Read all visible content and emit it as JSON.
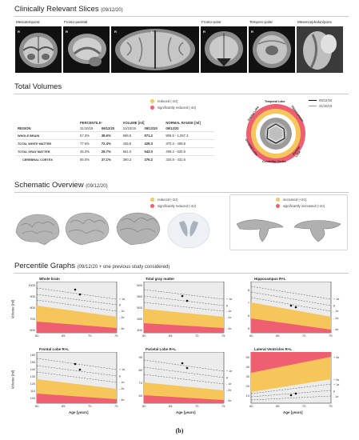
{
  "slices": {
    "title": "Clinically Relevant Slices",
    "date": "(09/12/20)",
    "labels": [
      "Mesiotemporal",
      "Fronto-parietal",
      "Fronto-polar",
      "Temporo-polar",
      "Mesencephalon/pons"
    ],
    "markers": [
      "R",
      "R",
      "R",
      "L",
      "R",
      "R"
    ]
  },
  "volumes": {
    "title": "Total Volumes",
    "legend": [
      "reduced (-2σ)",
      "significantly reduced (-4σ)"
    ],
    "headers": {
      "region": "REGION",
      "percentile": "PERCENTILE¹",
      "volume": "VOLUME [ml]",
      "normal": "NORMAL RANGE [ml]"
    },
    "dates": [
      "31/10/19",
      "09/12/20",
      "31/10/19",
      "09/12/20",
      "09/12/20"
    ],
    "rows": [
      {
        "region": "WHOLE BRAIN",
        "p1": "57.3%",
        "p2": "38.6%",
        "v1": "996.6",
        "v2": "971.2",
        "nr": "906.5 - 1,057.3"
      },
      {
        "region": "TOTAL WHITE MATTER",
        "p1": "77.6%",
        "p2": "72.4%",
        "v1": "435.8",
        "v2": "428.3",
        "nr": "370.4 - 459.8"
      },
      {
        "region": "TOTAL GRAY MATTER",
        "p1": "45.3%",
        "p2": "28.7%",
        "v1": "561.0",
        "v2": "543.0",
        "nr": "499.4 - 620.6"
      },
      {
        "region": "CEREBRAL CORTEX",
        "p1": "56.0%",
        "p2": "37.1%",
        "v1": "390.3",
        "v2": "376.2",
        "nr": "334.8 - 431.6"
      }
    ],
    "radar_legend": [
      "09/12/20",
      "31/10/19"
    ],
    "radar_labels": [
      "Temporal Lobe",
      "Frontal Lobe",
      "Hippocampus",
      "Parietal Lobe",
      "Cerebellar Cortex",
      "Occipital Lobe"
    ]
  },
  "schematic": {
    "title": "Schematic Overview",
    "date": "(09/12/20)",
    "legend_left": [
      "reduced (-2σ)",
      "significantly reduced (-4σ)"
    ],
    "legend_right": [
      "increased (+2σ)",
      "significantly increased (+4σ)"
    ]
  },
  "percentile": {
    "title": "Percentile Graphs",
    "subtitle": "(09/12/20 + one previous study considered)",
    "ylabel": "Volume [ml]",
    "xlabel": "Age [years]",
    "x_ticks": [
      "60",
      "65",
      "70",
      "75"
    ],
    "sigma_labels": [
      "+ 1σ",
      "μ",
      "- 1σ",
      "- 2σ",
      "- 4σ"
    ],
    "sigma_labels_lv": [
      "+ 4σ",
      "+ 2σ",
      "+ 1σ",
      "μ",
      "- 1σ"
    ],
    "graphs": [
      {
        "title": "Whole brain",
        "yticks": [
          "1000",
          "900",
          "800",
          "700",
          "600"
        ]
      },
      {
        "title": "Total gray matter",
        "yticks": [
          "600",
          "550",
          "500",
          "450",
          "400"
        ]
      },
      {
        "title": "Hippocampus R+L",
        "yticks": [
          "8",
          "7",
          "6",
          "5"
        ]
      },
      {
        "title": "Frontal Lobe R+L",
        "yticks": [
          "160",
          "150",
          "140",
          "130",
          "120",
          "110",
          "100"
        ]
      },
      {
        "title": "Parietal Lobe R+L",
        "yticks": [
          "90",
          "80",
          "70",
          "60"
        ]
      },
      {
        "title": "Lateral Ventricles R+L",
        "yticks": [
          "50",
          "40",
          "30",
          "20",
          "10"
        ]
      }
    ]
  },
  "caption": "(b)",
  "colors": {
    "reduced": "#f6c65b",
    "sig_reduced": "#ef5f72",
    "normal_bg": "#ececec",
    "ring_gray": "#9b9b9b"
  }
}
